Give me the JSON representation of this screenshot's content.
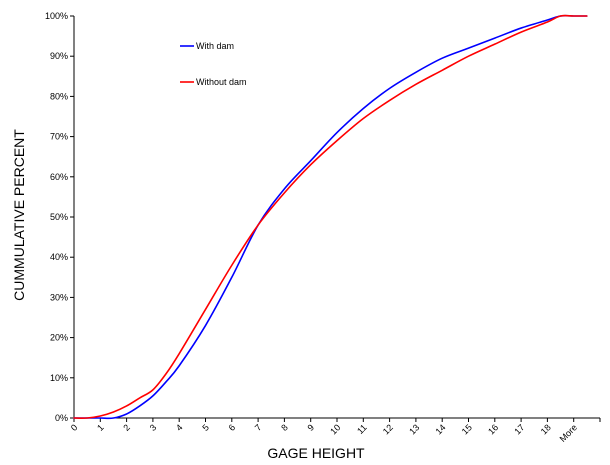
{
  "chart_data": {
    "type": "line",
    "title": "",
    "xlabel": "GAGE HEIGHT",
    "ylabel": "CUMMULATIVE PERCENT",
    "x_categories": [
      "0",
      "1",
      "2",
      "3",
      "4",
      "5",
      "6",
      "7",
      "8",
      "9",
      "10",
      "11",
      "12",
      "13",
      "14",
      "15",
      "16",
      "17",
      "18",
      "More"
    ],
    "ylim": [
      0,
      100
    ],
    "y_ticks": [
      "0%",
      "10%",
      "20%",
      "30%",
      "40%",
      "50%",
      "60%",
      "70%",
      "80%",
      "90%",
      "100%"
    ],
    "grid": false,
    "legend_position": "top-left",
    "series": [
      {
        "name": "With dam",
        "color": "#0000ff",
        "points": [
          [
            0,
            0
          ],
          [
            0.5,
            0
          ],
          [
            1,
            0
          ],
          [
            1.5,
            0
          ],
          [
            2,
            1
          ],
          [
            2.5,
            3
          ],
          [
            3,
            5.5
          ],
          [
            3.5,
            9
          ],
          [
            4,
            13
          ],
          [
            5,
            23
          ],
          [
            6,
            35
          ],
          [
            7,
            48
          ],
          [
            8,
            57
          ],
          [
            9,
            64
          ],
          [
            10,
            71
          ],
          [
            11,
            77
          ],
          [
            12,
            82
          ],
          [
            13,
            86
          ],
          [
            14,
            89.5
          ],
          [
            15,
            92
          ],
          [
            16,
            94.5
          ],
          [
            17,
            97
          ],
          [
            18,
            99
          ],
          [
            18.5,
            100
          ],
          [
            19,
            100
          ],
          [
            19.5,
            100
          ]
        ]
      },
      {
        "name": "Without dam",
        "color": "#ff0000",
        "points": [
          [
            0,
            0
          ],
          [
            0.5,
            0
          ],
          [
            1,
            0.5
          ],
          [
            1.5,
            1.5
          ],
          [
            2,
            3
          ],
          [
            2.5,
            5
          ],
          [
            3,
            7
          ],
          [
            3.5,
            11
          ],
          [
            4,
            16
          ],
          [
            5,
            27
          ],
          [
            6,
            38
          ],
          [
            7,
            48
          ],
          [
            8,
            56
          ],
          [
            9,
            63
          ],
          [
            10,
            69
          ],
          [
            11,
            74.5
          ],
          [
            12,
            79
          ],
          [
            13,
            83
          ],
          [
            14,
            86.5
          ],
          [
            15,
            90
          ],
          [
            16,
            93
          ],
          [
            17,
            96
          ],
          [
            18,
            98.5
          ],
          [
            18.5,
            100
          ],
          [
            19,
            100
          ],
          [
            19.5,
            100
          ]
        ]
      }
    ]
  }
}
